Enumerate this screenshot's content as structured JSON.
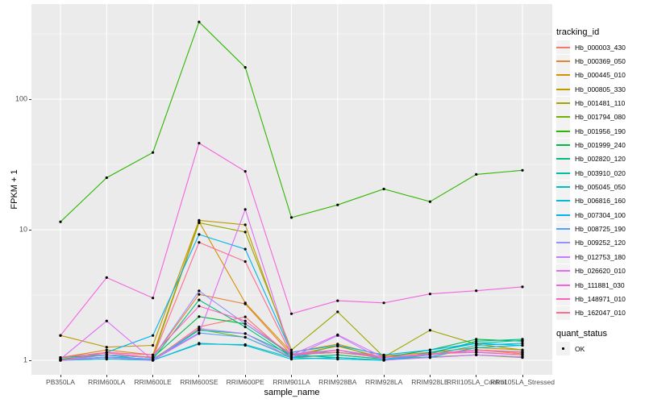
{
  "chart_data": {
    "type": "line",
    "title": "",
    "xlabel": "sample_name",
    "ylabel": "FPKM + 1",
    "y_scale": "log10",
    "ylim": [
      0.78,
      535
    ],
    "grid": true,
    "legend_position": "right",
    "legend_title": "tracking_id",
    "quant_legend": {
      "title": "quant_status",
      "items": [
        {
          "label": "OK"
        }
      ]
    },
    "point_color": "#000000",
    "x_categories": [
      "PB350LA",
      "RRIM600LA",
      "RRIM600LE",
      "RRIM600SE",
      "RRIM600PE",
      "RRIM901LA",
      "RRIM928BA",
      "RRIM928LA",
      "RRIM928LE",
      "RRII105LA_Control",
      "RRII105LA_Stressed"
    ],
    "y_ticks": [
      {
        "label": "1",
        "value": 1
      },
      {
        "label": "10",
        "value": 10
      },
      {
        "label": "100",
        "value": 100
      }
    ],
    "y_minor_ticks": [
      3.1623,
      31.623,
      316.23
    ],
    "series": [
      {
        "name": "Hb_000003_430",
        "color": "#F8766D",
        "values": [
          1.02,
          1.05,
          1.0,
          1.8,
          2.15,
          1.05,
          1.1,
          1.02,
          1.05,
          1.1,
          1.06
        ]
      },
      {
        "name": "Hb_000369_050",
        "color": "#E9842C",
        "values": [
          1.0,
          1.1,
          1.05,
          3.2,
          2.7,
          1.1,
          1.28,
          1.05,
          1.12,
          1.2,
          1.12
        ]
      },
      {
        "name": "Hb_000445_010",
        "color": "#D69100",
        "values": [
          1.05,
          1.2,
          1.1,
          11.5,
          2.75,
          1.15,
          1.33,
          1.08,
          1.15,
          1.25,
          1.2
        ]
      },
      {
        "name": "Hb_000805_330",
        "color": "#BD9C00",
        "values": [
          1.55,
          1.26,
          1.3,
          11.8,
          10.9,
          1.12,
          1.15,
          1.06,
          1.1,
          1.2,
          1.15
        ]
      },
      {
        "name": "Hb_001481_110",
        "color": "#9DA700",
        "values": [
          1.05,
          1.1,
          1.06,
          11.3,
          9.6,
          1.2,
          2.35,
          1.06,
          1.7,
          1.33,
          1.2
        ]
      },
      {
        "name": "Hb_001794_080",
        "color": "#6FB000",
        "values": [
          1.0,
          1.05,
          1.02,
          1.72,
          1.5,
          1.05,
          1.3,
          1.02,
          1.06,
          1.1,
          1.05
        ]
      },
      {
        "name": "Hb_001956_190",
        "color": "#2FB600",
        "values": [
          11.5,
          25,
          39,
          390,
          175,
          12.4,
          15.5,
          20.5,
          16.4,
          26.5,
          28.5
        ]
      },
      {
        "name": "Hb_001999_240",
        "color": "#00BA46",
        "values": [
          1.02,
          1.1,
          1.05,
          2.16,
          1.9,
          1.1,
          1.15,
          1.05,
          1.2,
          1.45,
          1.4
        ]
      },
      {
        "name": "Hb_002820_120",
        "color": "#00BE7C",
        "values": [
          1.0,
          1.06,
          1.02,
          2.9,
          1.8,
          1.06,
          1.1,
          1.02,
          1.12,
          1.4,
          1.45
        ]
      },
      {
        "name": "Hb_003910_020",
        "color": "#00C0A4",
        "values": [
          1.05,
          1.1,
          1.0,
          1.7,
          1.6,
          1.1,
          1.05,
          1.0,
          1.15,
          1.35,
          1.42
        ]
      },
      {
        "name": "Hb_005045_050",
        "color": "#00BFC4",
        "values": [
          1.0,
          1.02,
          1.0,
          1.35,
          1.3,
          1.02,
          1.05,
          1.0,
          1.1,
          1.3,
          1.35
        ]
      },
      {
        "name": "Hb_006816_160",
        "color": "#00BBDC",
        "values": [
          1.0,
          1.05,
          1.0,
          1.33,
          1.32,
          1.05,
          1.02,
          1.0,
          1.06,
          1.25,
          1.3
        ]
      },
      {
        "name": "Hb_007304_100",
        "color": "#00B3F2",
        "values": [
          1.0,
          1.15,
          1.55,
          9.2,
          7.1,
          1.15,
          1.3,
          1.1,
          1.2,
          1.35,
          1.3
        ]
      },
      {
        "name": "Hb_008725_190",
        "color": "#4FA2FF",
        "values": [
          1.0,
          1.06,
          1.02,
          1.62,
          1.5,
          1.06,
          1.2,
          1.02,
          1.1,
          1.2,
          1.16
        ]
      },
      {
        "name": "Hb_009252_120",
        "color": "#9292FF",
        "values": [
          1.0,
          1.1,
          1.05,
          3.4,
          1.9,
          1.12,
          1.2,
          1.06,
          1.12,
          1.16,
          1.1
        ]
      },
      {
        "name": "Hb_012753_180",
        "color": "#BF80FF",
        "values": [
          1.0,
          1.05,
          1.0,
          1.75,
          1.6,
          1.05,
          1.55,
          1.0,
          1.05,
          1.1,
          1.06
        ]
      },
      {
        "name": "Hb_026620_010",
        "color": "#E06DF8",
        "values": [
          1.02,
          2.0,
          1.0,
          1.6,
          14.3,
          1.1,
          1.57,
          1.05,
          1.1,
          1.2,
          1.15
        ]
      },
      {
        "name": "Hb_111881_030",
        "color": "#F564DF",
        "values": [
          1.55,
          4.3,
          3.0,
          46,
          28,
          2.27,
          2.86,
          2.75,
          3.22,
          3.41,
          3.65
        ]
      },
      {
        "name": "Hb_148971_010",
        "color": "#FF61BD",
        "values": [
          1.05,
          1.15,
          1.1,
          2.6,
          2.0,
          1.1,
          1.2,
          1.05,
          1.12,
          1.15,
          1.1
        ]
      },
      {
        "name": "Hb_162047_010",
        "color": "#FF6C91",
        "values": [
          1.0,
          1.14,
          1.05,
          8.0,
          5.7,
          1.1,
          1.15,
          1.05,
          1.12,
          1.2,
          1.15
        ]
      }
    ]
  },
  "colors": {
    "panel_bg": "#EBEBEB",
    "gridline": "#FFFFFF",
    "legend_key_bg": "#F2F2F2",
    "tick_text": "#4D4D4D",
    "tick_mark": "#333333"
  }
}
